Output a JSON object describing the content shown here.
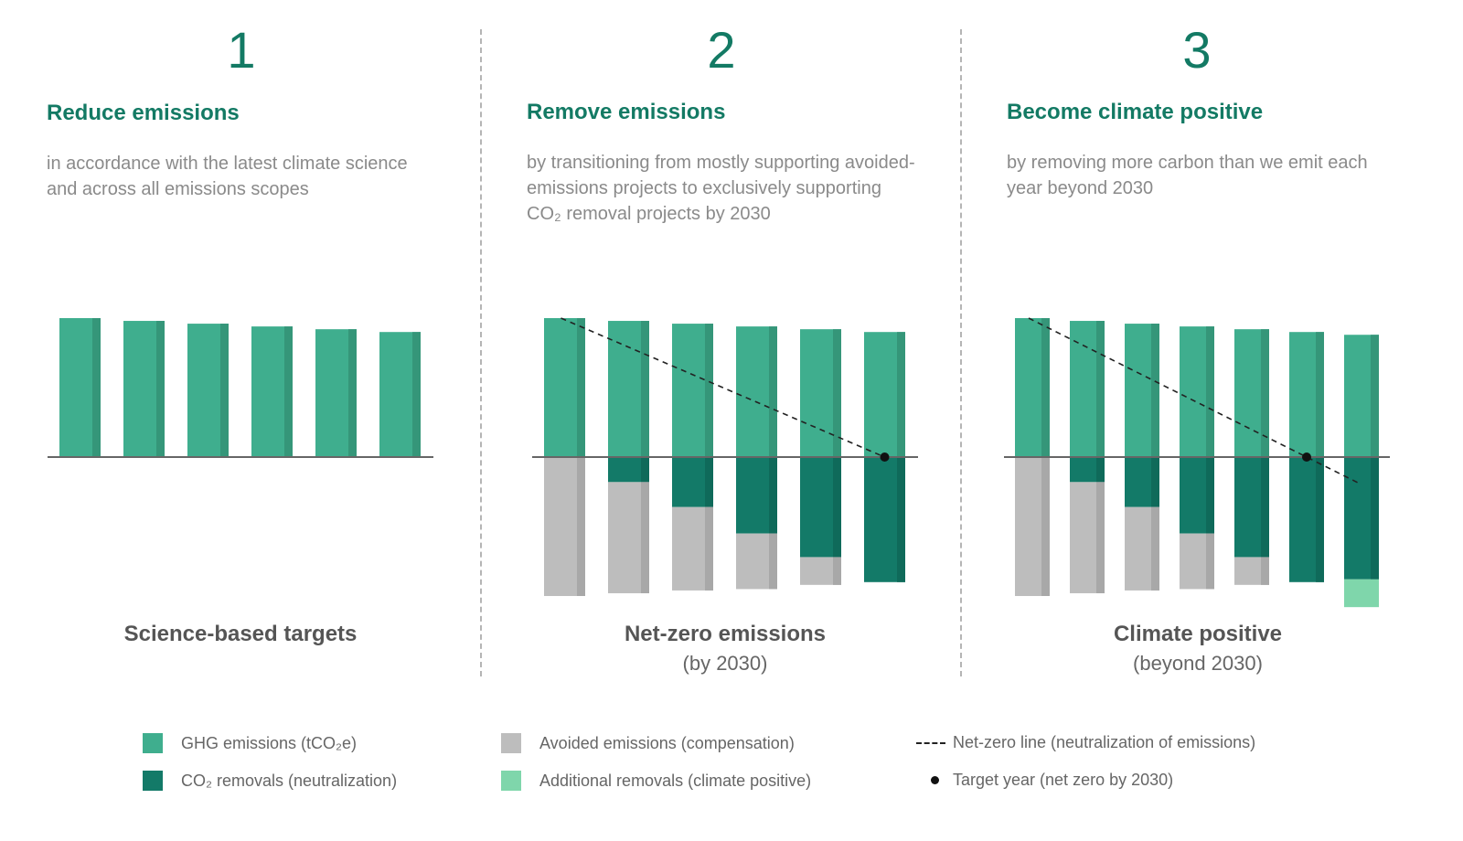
{
  "colors": {
    "ghg": "#3fae8e",
    "ghg_dark": "#359679",
    "removal": "#137a68",
    "removal_dark": "#0f6a5a",
    "avoided": "#bdbdbd",
    "avoided_dark": "#a8a8a8",
    "additional": "#7fd6ab",
    "accent": "#137a64"
  },
  "panels": [
    {
      "number": "1",
      "title": "Reduce emissions",
      "description": "in accordance with the latest climate science and across all emissions scopes",
      "caption": "Science-based targets",
      "subcaption": "",
      "bars": {
        "ghg": [
          100,
          98,
          96,
          94,
          92,
          90
        ],
        "removals": [],
        "avoided": [],
        "additional": []
      }
    },
    {
      "number": "2",
      "title": "Remove emissions",
      "description": "by transitioning from mostly supporting avoided-emissions projects to exclusively supporting CO₂ removal projects by 2030",
      "caption": "Net-zero emissions",
      "subcaption": "(by 2030)",
      "bars": {
        "ghg": [
          100,
          98,
          96,
          94,
          92,
          90
        ],
        "removals": [
          0,
          18,
          36,
          55,
          72,
          90
        ],
        "avoided": [
          100,
          80,
          60,
          40,
          20,
          0
        ],
        "additional": []
      },
      "target_index": 5
    },
    {
      "number": "3",
      "title": "Become climate positive",
      "description": "by removing more carbon than we emit each year beyond 2030",
      "caption": "Climate positive",
      "subcaption": "(beyond 2030)",
      "bars": {
        "ghg": [
          100,
          98,
          96,
          94,
          92,
          90,
          88
        ],
        "removals": [
          0,
          18,
          36,
          55,
          72,
          90,
          88
        ],
        "avoided": [
          100,
          80,
          60,
          40,
          20,
          0,
          0
        ],
        "additional": [
          0,
          0,
          0,
          0,
          0,
          0,
          20
        ]
      },
      "target_index": 5
    }
  ],
  "legend": [
    {
      "label": "GHG emissions (tCO₂e)",
      "key": "ghg"
    },
    {
      "label": "CO₂ removals (neutralization)",
      "key": "removal"
    },
    {
      "label": "Avoided emissions (compensation)",
      "key": "avoided"
    },
    {
      "label": "Additional removals (climate positive)",
      "key": "additional"
    },
    {
      "label": "Net-zero line (neutralization of emissions)",
      "key": "line"
    },
    {
      "label": "Target year (net zero by 2030)",
      "key": "dot"
    }
  ]
}
